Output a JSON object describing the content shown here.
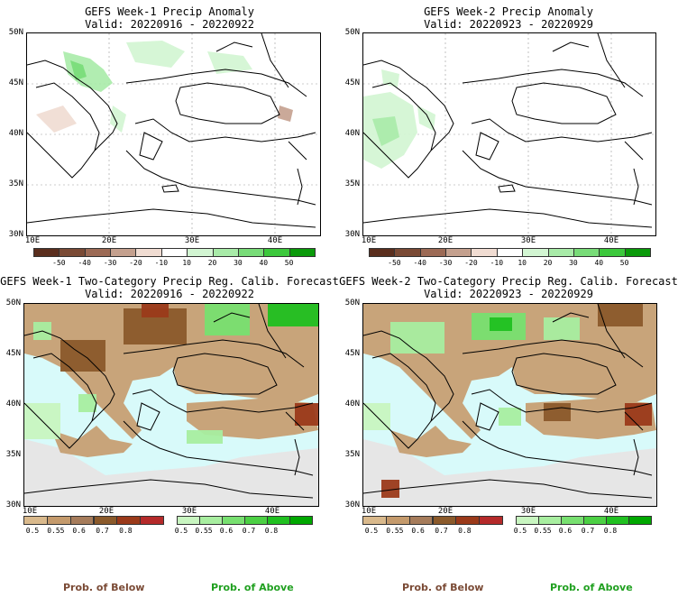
{
  "panels": [
    {
      "title": "GEFS Week-1 Precip Anomaly",
      "valid": "Valid: 20220916 - 20220922"
    },
    {
      "title": "GEFS Week-2 Precip Anomaly",
      "valid": "Valid: 20220923 - 20220929"
    },
    {
      "title": "GEFS Week-1 Two-Category Precip Reg. Calib. Forecast",
      "valid": "Valid: 20220916 - 20220922"
    },
    {
      "title": "GEFS Week-2 Two-Category Precip Reg. Calib. Forecast",
      "valid": "Valid: 20220923 - 20220929"
    }
  ],
  "lat_labels": [
    "50N",
    "45N",
    "40N",
    "35N",
    "30N"
  ],
  "lon_labels": [
    "10E",
    "20E",
    "30E",
    "40E"
  ],
  "anomaly_colorbar": {
    "ticks": [
      "-50",
      "-40",
      "-30",
      "-20",
      "-10",
      "10",
      "20",
      "30",
      "40",
      "50"
    ],
    "colors": [
      "#5a2e1e",
      "#7a4a35",
      "#9c6a55",
      "#c4a08e",
      "#f0dcd2",
      "#ffffff",
      "#d2f5d2",
      "#a8eba8",
      "#78dc78",
      "#3cc83c",
      "#0a9a0a"
    ]
  },
  "below_colorbar": {
    "ticks": [
      "0.5",
      "0.55",
      "0.6",
      "0.7",
      "0.8"
    ],
    "colors": [
      "#d9b98c",
      "#c49a6c",
      "#a67c5b",
      "#8b5a2b",
      "#9b3a1a",
      "#b52a2a"
    ]
  },
  "above_colorbar": {
    "ticks": [
      "0.5",
      "0.55",
      "0.6",
      "0.7",
      "0.8"
    ],
    "colors": [
      "#c8f5c0",
      "#a8eea0",
      "#78e070",
      "#4cd044",
      "#20c020",
      "#00a800"
    ]
  },
  "prob_labels": {
    "below": "Prob. of Below",
    "above": "Prob. of Above"
  },
  "colors": {
    "sea": "#d8fafa",
    "land_out": "#e6e6e6"
  }
}
